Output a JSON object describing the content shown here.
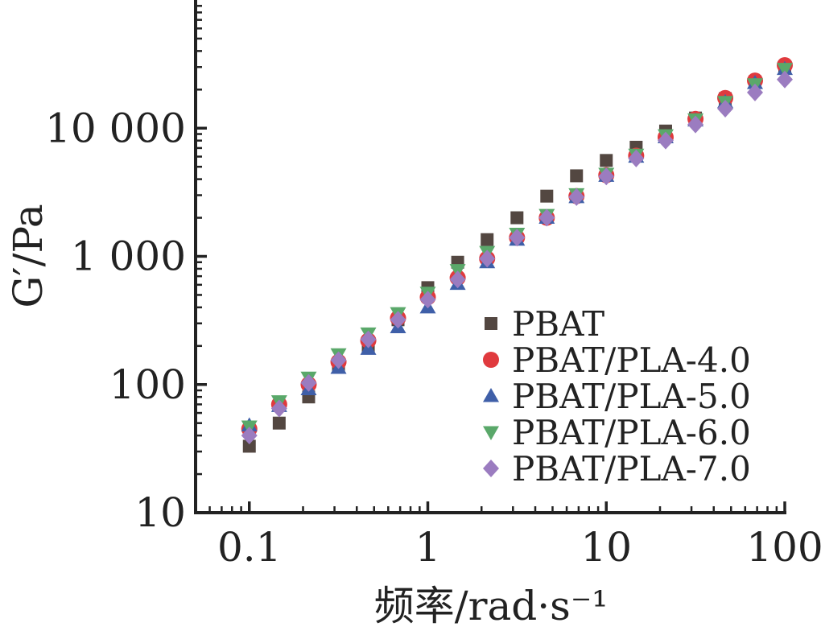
{
  "chart_data": {
    "type": "scatter",
    "title": "",
    "xlabel": "频率/rad·s⁻¹",
    "ylabel": "G′/Pa",
    "xscale": "log",
    "yscale": "log",
    "xlim": [
      0.05,
      100
    ],
    "ylim": [
      10,
      100000
    ],
    "x_ticks": [
      0.1,
      1,
      10,
      100
    ],
    "x_tick_labels": [
      "0.1",
      "1",
      "10",
      "100"
    ],
    "y_ticks": [
      10,
      100,
      1000,
      10000
    ],
    "y_tick_labels": [
      "10",
      "100",
      "1 000",
      "10 000"
    ],
    "grid": false,
    "legend_position": "lower-right",
    "x": [
      0.1,
      0.147,
      0.215,
      0.316,
      0.464,
      0.681,
      1,
      1.47,
      2.15,
      3.16,
      4.64,
      6.81,
      10,
      14.7,
      21.5,
      31.6,
      46.4,
      68.1,
      100
    ],
    "series": [
      {
        "name": "PBAT",
        "color": "#534741",
        "marker": "square",
        "values": [
          33,
          50,
          80,
          140,
          200,
          320,
          570,
          900,
          1350,
          2000,
          2950,
          4250,
          5600,
          7100,
          9500,
          12000,
          17000,
          23000,
          30000
        ]
      },
      {
        "name": "PBAT/PLA-4.0",
        "color": "#e03a3e",
        "marker": "circle",
        "values": [
          45,
          70,
          100,
          150,
          220,
          330,
          480,
          680,
          960,
          1400,
          2000,
          2950,
          4300,
          6100,
          8500,
          11800,
          17200,
          23500,
          31000
        ]
      },
      {
        "name": "PBAT/PLA-5.0",
        "color": "#3f5fa8",
        "marker": "triangle-up",
        "values": [
          48,
          68,
          92,
          135,
          190,
          280,
          400,
          610,
          900,
          1350,
          2000,
          2900,
          4250,
          6000,
          8500,
          11500,
          16000,
          22500,
          29000
        ]
      },
      {
        "name": "PBAT/PLA-6.0",
        "color": "#5aa86a",
        "marker": "triangle-down",
        "values": [
          47,
          74,
          113,
          172,
          250,
          360,
          520,
          780,
          1080,
          1500,
          2100,
          3050,
          4400,
          6200,
          8800,
          11700,
          16000,
          22000,
          29000
        ]
      },
      {
        "name": "PBAT/PLA-7.0",
        "color": "#9b7cc0",
        "marker": "diamond",
        "values": [
          40,
          65,
          103,
          155,
          225,
          320,
          460,
          660,
          960,
          1400,
          2000,
          2900,
          4200,
          5800,
          8000,
          10700,
          14200,
          19000,
          24000
        ]
      }
    ]
  }
}
